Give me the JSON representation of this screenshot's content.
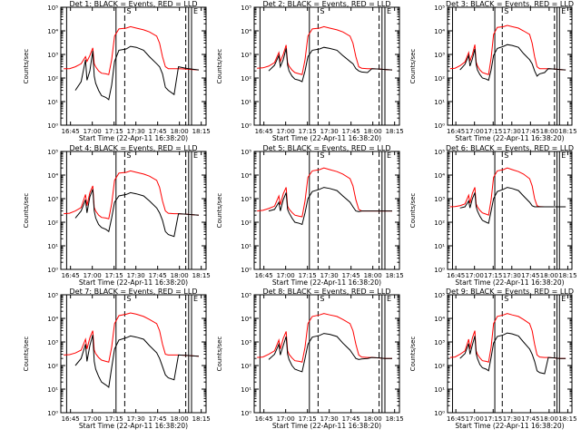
{
  "figure": {
    "ylabel": "Counts/sec",
    "xlabel": "Start Time (22-Apr-11 16:38:20)",
    "x_ticks": [
      "16:45",
      "17:00",
      "17:15",
      "17:30",
      "17:45",
      "18:00",
      "18:15"
    ],
    "y_ticks": [
      "10⁰",
      "10¹",
      "10²",
      "10³",
      "10⁴",
      "10⁵"
    ],
    "colors": {
      "events": "#000000",
      "lld": "#ff0000"
    }
  },
  "chart_data": [
    {
      "type": "line",
      "title": "Det 1: BLACK = Events, RED = LLD",
      "xlim_minutes_after_start": [
        0,
        100
      ],
      "ylim": [
        1,
        100000
      ],
      "yscale": "log",
      "x_minutes_after_start": [
        2,
        6,
        10,
        14,
        17,
        18,
        20,
        22,
        23,
        24,
        26,
        28,
        31,
        33,
        35,
        37,
        40,
        45,
        48,
        52,
        57,
        61,
        66,
        68,
        70,
        72,
        74,
        78,
        81,
        86,
        90,
        95
      ],
      "series": [
        {
          "name": "BLACK = Events",
          "values": [
            null,
            null,
            30,
            70,
            600,
            80,
            200,
            1400,
            120,
            60,
            30,
            18,
            15,
            12,
            50,
            500,
            1500,
            1700,
            2200,
            2000,
            1500,
            800,
            400,
            300,
            150,
            40,
            30,
            20,
            300,
            260,
            240,
            220
          ]
        },
        {
          "name": "RED = LLD",
          "values": [
            250,
            250,
            300,
            400,
            800,
            500,
            900,
            1900,
            400,
            300,
            200,
            160,
            150,
            140,
            600,
            6000,
            12000,
            13000,
            15000,
            13000,
            11000,
            9000,
            6000,
            3000,
            800,
            300,
            250,
            250,
            250,
            240,
            230,
            220
          ]
        }
      ]
    },
    {
      "type": "line",
      "title": "Det 2: BLACK = Events, RED = LLD",
      "xlim_minutes_after_start": [
        0,
        100
      ],
      "ylim": [
        1,
        100000
      ],
      "yscale": "log",
      "x_minutes_after_start": [
        2,
        6,
        10,
        14,
        17,
        18,
        20,
        22,
        23,
        24,
        26,
        28,
        31,
        33,
        35,
        37,
        40,
        45,
        48,
        52,
        57,
        61,
        66,
        68,
        70,
        72,
        74,
        78,
        81,
        86,
        90,
        95
      ],
      "series": [
        {
          "name": "BLACK = Events",
          "values": [
            null,
            null,
            200,
            350,
            900,
            300,
            600,
            1800,
            350,
            200,
            120,
            90,
            80,
            70,
            200,
            800,
            1500,
            1700,
            2000,
            1800,
            1500,
            900,
            500,
            400,
            250,
            200,
            180,
            170,
            250,
            240,
            230,
            220
          ]
        },
        {
          "name": "RED = LLD",
          "values": [
            260,
            270,
            320,
            450,
            1200,
            500,
            1000,
            2500,
            450,
            320,
            220,
            170,
            150,
            140,
            600,
            6000,
            12000,
            13000,
            15000,
            13000,
            11000,
            9000,
            6000,
            3000,
            800,
            300,
            260,
            250,
            250,
            240,
            230,
            220
          ]
        }
      ]
    },
    {
      "type": "line",
      "title": "Det 3: BLACK = Events, RED = LLD",
      "xlim_minutes_after_start": [
        0,
        100
      ],
      "ylim": [
        1,
        100000
      ],
      "yscale": "log",
      "x_minutes_after_start": [
        2,
        6,
        10,
        14,
        17,
        18,
        20,
        22,
        23,
        24,
        26,
        28,
        31,
        33,
        35,
        37,
        40,
        45,
        48,
        52,
        57,
        61,
        66,
        68,
        70,
        72,
        74,
        78,
        81,
        86,
        90,
        95
      ],
      "series": [
        {
          "name": "BLACK = Events",
          "values": [
            null,
            null,
            220,
            380,
            900,
            320,
            650,
            1700,
            380,
            220,
            140,
            100,
            90,
            80,
            220,
            900,
            1800,
            2200,
            2600,
            2400,
            2000,
            1100,
            600,
            400,
            200,
            120,
            150,
            170,
            250,
            240,
            230,
            220
          ]
        },
        {
          "name": "RED = LLD",
          "values": [
            250,
            260,
            330,
            480,
            1200,
            520,
            1000,
            2600,
            480,
            330,
            220,
            170,
            150,
            140,
            700,
            7000,
            14000,
            15000,
            17000,
            15000,
            13000,
            10000,
            7000,
            3000,
            800,
            300,
            250,
            250,
            250,
            240,
            230,
            220
          ]
        }
      ]
    },
    {
      "type": "line",
      "title": "Det 4: BLACK = Events, RED = LLD",
      "xlim_minutes_after_start": [
        0,
        100
      ],
      "ylim": [
        1,
        100000
      ],
      "yscale": "log",
      "x_minutes_after_start": [
        2,
        6,
        10,
        14,
        17,
        18,
        20,
        22,
        23,
        24,
        26,
        28,
        31,
        33,
        35,
        37,
        40,
        45,
        48,
        52,
        57,
        61,
        66,
        68,
        70,
        72,
        74,
        78,
        81,
        86,
        90,
        95
      ],
      "series": [
        {
          "name": "BLACK = Events",
          "values": [
            null,
            null,
            150,
            300,
            900,
            250,
            1200,
            2500,
            300,
            150,
            80,
            60,
            50,
            40,
            150,
            700,
            1300,
            1500,
            1800,
            1600,
            1300,
            800,
            400,
            250,
            120,
            40,
            30,
            25,
            230,
            220,
            210,
            200
          ]
        },
        {
          "name": "RED = LLD",
          "values": [
            230,
            240,
            300,
            420,
            1500,
            500,
            1800,
            3500,
            420,
            300,
            200,
            160,
            150,
            140,
            600,
            6000,
            12000,
            13000,
            15000,
            13000,
            11000,
            9000,
            6000,
            3000,
            800,
            300,
            240,
            230,
            230,
            220,
            210,
            200
          ]
        }
      ]
    },
    {
      "type": "line",
      "title": "Det 5: BLACK = Events, RED = LLD",
      "xlim_minutes_after_start": [
        0,
        100
      ],
      "ylim": [
        1,
        100000
      ],
      "yscale": "log",
      "x_minutes_after_start": [
        2,
        6,
        10,
        14,
        17,
        18,
        20,
        22,
        23,
        24,
        26,
        28,
        31,
        33,
        35,
        37,
        40,
        45,
        48,
        52,
        57,
        61,
        66,
        68,
        70,
        72,
        74,
        78,
        81,
        86,
        90,
        95
      ],
      "series": [
        {
          "name": "BLACK = Events",
          "values": [
            null,
            null,
            300,
            350,
            700,
            300,
            900,
            1800,
            350,
            250,
            150,
            100,
            90,
            80,
            250,
            1000,
            2000,
            2500,
            3000,
            2700,
            2200,
            1300,
            700,
            450,
            300,
            280,
            300,
            300,
            300,
            300,
            300,
            300
          ]
        },
        {
          "name": "RED = LLD",
          "values": [
            300,
            320,
            380,
            480,
            1300,
            550,
            1600,
            3000,
            480,
            360,
            260,
            200,
            180,
            170,
            800,
            8000,
            15000,
            17000,
            20000,
            17000,
            14000,
            11000,
            7000,
            3500,
            900,
            350,
            300,
            300,
            300,
            300,
            300,
            300
          ]
        }
      ]
    },
    {
      "type": "line",
      "title": "Det 6: BLACK = Events, RED = LLD",
      "xlim_minutes_after_start": [
        0,
        100
      ],
      "ylim": [
        1,
        100000
      ],
      "yscale": "log",
      "x_minutes_after_start": [
        2,
        6,
        10,
        14,
        17,
        18,
        20,
        22,
        23,
        24,
        26,
        28,
        31,
        33,
        35,
        37,
        40,
        45,
        48,
        52,
        57,
        61,
        66,
        68,
        70,
        72,
        74,
        78,
        81,
        86,
        90,
        95
      ],
      "series": [
        {
          "name": "BLACK = Events",
          "values": [
            null,
            null,
            400,
            450,
            800,
            400,
            1000,
            1800,
            450,
            300,
            180,
            120,
            100,
            90,
            300,
            1000,
            2000,
            2500,
            3000,
            2700,
            2200,
            1300,
            700,
            500,
            450,
            450,
            450,
            450,
            450,
            450,
            450,
            450
          ]
        },
        {
          "name": "RED = LLD",
          "values": [
            450,
            460,
            500,
            600,
            1400,
            650,
            1700,
            3000,
            600,
            450,
            320,
            250,
            220,
            200,
            900,
            8000,
            15000,
            17000,
            20000,
            17000,
            14000,
            11000,
            7000,
            3500,
            1000,
            500,
            460,
            450,
            450,
            450,
            450,
            450
          ]
        }
      ]
    },
    {
      "type": "line",
      "title": "Det 7: BLACK = Events, RED = LLD",
      "xlim_minutes_after_start": [
        0,
        100
      ],
      "ylim": [
        1,
        100000
      ],
      "yscale": "log",
      "x_minutes_after_start": [
        2,
        6,
        10,
        14,
        17,
        18,
        20,
        22,
        23,
        24,
        26,
        28,
        31,
        33,
        35,
        37,
        40,
        45,
        48,
        52,
        57,
        61,
        66,
        68,
        70,
        72,
        74,
        78,
        81,
        86,
        90,
        95
      ],
      "series": [
        {
          "name": "BLACK = Events",
          "values": [
            null,
            null,
            100,
            200,
            800,
            150,
            700,
            2000,
            150,
            70,
            35,
            20,
            15,
            12,
            80,
            500,
            1200,
            1500,
            1800,
            1600,
            1300,
            700,
            350,
            200,
            90,
            40,
            30,
            25,
            280,
            270,
            260,
            250
          ]
        },
        {
          "name": "RED = LLD",
          "values": [
            280,
            290,
            340,
            450,
            1300,
            500,
            1500,
            3000,
            450,
            320,
            220,
            170,
            150,
            140,
            600,
            6000,
            13000,
            15000,
            17000,
            15000,
            12000,
            9000,
            6000,
            3000,
            800,
            300,
            280,
            280,
            280,
            270,
            260,
            250
          ]
        }
      ]
    },
    {
      "type": "line",
      "title": "Det 8: BLACK = Events, RED = LLD",
      "xlim_minutes_after_start": [
        0,
        100
      ],
      "ylim": [
        1,
        100000
      ],
      "yscale": "log",
      "x_minutes_after_start": [
        2,
        6,
        10,
        14,
        17,
        18,
        20,
        22,
        23,
        24,
        26,
        28,
        31,
        33,
        35,
        37,
        40,
        45,
        48,
        52,
        57,
        61,
        66,
        68,
        70,
        72,
        74,
        78,
        81,
        86,
        90,
        95
      ],
      "series": [
        {
          "name": "BLACK = Events",
          "values": [
            null,
            null,
            180,
            300,
            800,
            280,
            700,
            1700,
            300,
            180,
            100,
            70,
            60,
            55,
            200,
            800,
            1600,
            1900,
            2300,
            2100,
            1700,
            900,
            450,
            300,
            200,
            180,
            190,
            200,
            220,
            210,
            200,
            200
          ]
        },
        {
          "name": "RED = LLD",
          "values": [
            220,
            230,
            300,
            420,
            1200,
            500,
            1400,
            2800,
            420,
            300,
            210,
            160,
            150,
            140,
            600,
            6000,
            12000,
            14000,
            16000,
            14000,
            12000,
            9000,
            6000,
            3000,
            800,
            280,
            230,
            220,
            220,
            210,
            200,
            200
          ]
        }
      ]
    },
    {
      "type": "line",
      "title": "Det 9: BLACK = Events, RED = LLD",
      "xlim_minutes_after_start": [
        0,
        100
      ],
      "ylim": [
        1,
        100000
      ],
      "yscale": "log",
      "x_minutes_after_start": [
        2,
        6,
        10,
        14,
        17,
        18,
        20,
        22,
        23,
        24,
        26,
        28,
        31,
        33,
        35,
        37,
        40,
        45,
        48,
        52,
        57,
        61,
        66,
        68,
        70,
        72,
        74,
        78,
        81,
        86,
        90,
        95
      ],
      "series": [
        {
          "name": "BLACK = Events",
          "values": [
            null,
            null,
            200,
            320,
            850,
            300,
            750,
            1800,
            320,
            200,
            110,
            80,
            70,
            60,
            220,
            900,
            1700,
            2000,
            2400,
            2200,
            1800,
            1000,
            500,
            300,
            150,
            60,
            50,
            45,
            220,
            210,
            200,
            200
          ]
        },
        {
          "name": "RED = LLD",
          "values": [
            220,
            230,
            300,
            420,
            1300,
            500,
            1500,
            3000,
            420,
            300,
            210,
            160,
            150,
            140,
            600,
            6000,
            12000,
            14000,
            16000,
            14000,
            12000,
            9000,
            6000,
            3000,
            800,
            280,
            230,
            220,
            220,
            210,
            200,
            200
          ]
        }
      ]
    }
  ]
}
